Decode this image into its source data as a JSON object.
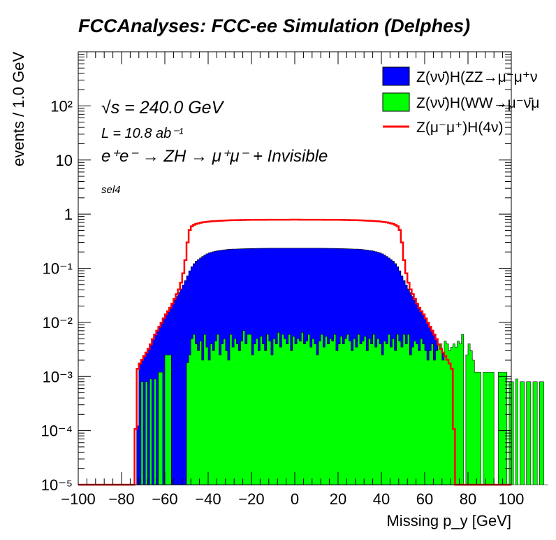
{
  "chart_data": {
    "type": "histogram",
    "title": "FCCAnalyses: FCC-ee Simulation (Delphes)",
    "xlabel": "Missing p_y [GeV]",
    "ylabel": "events / 1.0 GeV",
    "xlim": [
      -100,
      100
    ],
    "ylim": [
      1e-05,
      1000
    ],
    "log_y": true,
    "bin_width": 1.0,
    "x_ticks": [
      "−100",
      "−80",
      "−60",
      "−40",
      "−20",
      "0",
      "20",
      "40",
      "60",
      "80",
      "100"
    ],
    "y_ticks": [
      "10⁻⁵",
      "10⁻⁴",
      "10⁻³",
      "10⁻²",
      "10⁻¹",
      "1",
      "10",
      "10²"
    ],
    "annotations": {
      "sqrt_s": "√s = 240.0 GeV",
      "luminosity": "L = 10.8 ab⁻¹",
      "process": "e⁺e⁻ → ZH → μ⁺μ⁻ + Invisible",
      "selection": "sel4"
    },
    "legend": {
      "placement": "top-right",
      "entries": [
        "Z(νν̄)H(ZZ→μ⁻μ⁺ν",
        "Z(νν̄)H(WW→μ⁻ν̄μ",
        "Z(μ⁻μ⁺)H(4ν)"
      ]
    },
    "series": [
      {
        "name": "Z(νν̄)H(ZZ→μ⁻μ⁺ν",
        "style": "filled",
        "color": "#0000ff",
        "profile": [
          [
            -73,
            1e-05
          ],
          [
            -72,
            0.0015
          ],
          [
            -70,
            0.0022
          ],
          [
            -67,
            0.0035
          ],
          [
            -65,
            0.0055
          ],
          [
            -62,
            0.009
          ],
          [
            -60,
            0.013
          ],
          [
            -57,
            0.02
          ],
          [
            -55,
            0.028
          ],
          [
            -52,
            0.045
          ],
          [
            -50,
            0.065
          ],
          [
            -48,
            0.1
          ],
          [
            -46,
            0.13
          ],
          [
            -44,
            0.15
          ],
          [
            -42,
            0.17
          ],
          [
            -40,
            0.19
          ],
          [
            -36,
            0.21
          ],
          [
            -30,
            0.225
          ],
          [
            -20,
            0.232
          ],
          [
            -10,
            0.235
          ],
          [
            0,
            0.235
          ],
          [
            10,
            0.235
          ],
          [
            20,
            0.232
          ],
          [
            30,
            0.225
          ],
          [
            36,
            0.21
          ],
          [
            40,
            0.19
          ],
          [
            42,
            0.17
          ],
          [
            44,
            0.15
          ],
          [
            46,
            0.13
          ],
          [
            48,
            0.1
          ],
          [
            50,
            0.065
          ],
          [
            52,
            0.045
          ],
          [
            55,
            0.028
          ],
          [
            57,
            0.02
          ],
          [
            60,
            0.013
          ],
          [
            62,
            0.009
          ],
          [
            65,
            0.0055
          ],
          [
            67,
            0.0035
          ],
          [
            70,
            0.0022
          ],
          [
            72,
            0.0015
          ],
          [
            73,
            1e-05
          ]
        ]
      },
      {
        "name": "Z(νν̄)H(WW→μ⁻ν̄μ",
        "style": "filled",
        "color": "#00ff00",
        "x_start": -72,
        "values": [
          1e-05,
          0.0008,
          1e-05,
          0.0008,
          1e-05,
          0.0009,
          1e-05,
          0.0009,
          1e-05,
          0.0012,
          0.0012,
          1e-05,
          0.0025,
          0.0025,
          0.0025,
          1e-05,
          1e-05,
          1e-05,
          1e-05,
          1e-05,
          1e-05,
          1e-05,
          0.0018,
          0.0025,
          0.005,
          0.006,
          0.004,
          0.003,
          0.0045,
          0.002,
          0.006,
          0.0035,
          0.002,
          0.004,
          0.003,
          0.0045,
          0.006,
          0.0025,
          0.004,
          0.005,
          0.003,
          0.002,
          0.006,
          0.0035,
          0.005,
          0.004,
          0.003,
          0.0045,
          0.007,
          0.004,
          0.006,
          0.006,
          0.0025,
          0.004,
          0.005,
          0.003,
          0.0055,
          0.004,
          0.003,
          0.006,
          0.0045,
          0.0025,
          0.005,
          0.004,
          0.0065,
          0.0035,
          0.006,
          0.005,
          0.004,
          0.006,
          0.003,
          0.0055,
          0.004,
          0.005,
          0.0045,
          0.0065,
          0.004,
          0.0045,
          0.006,
          0.0035,
          0.005,
          0.004,
          0.0025,
          0.0045,
          0.006,
          0.0035,
          0.0055,
          0.004,
          0.005,
          0.0045,
          0.006,
          0.003,
          0.004,
          0.0055,
          0.004,
          0.005,
          0.006,
          0.0045,
          0.003,
          0.005,
          0.0035,
          0.006,
          0.004,
          0.0045,
          0.0055,
          0.003,
          0.005,
          0.004,
          0.006,
          0.0035,
          0.005,
          0.004,
          0.0025,
          0.0045,
          0.004,
          0.006,
          0.0035,
          0.005,
          0.003,
          0.006,
          0.0045,
          0.0035,
          0.006,
          0.004,
          0.006,
          0.0025,
          0.0035,
          0.0045,
          0.004,
          0.003,
          0.005,
          0.004,
          0.003,
          0.002,
          0.003,
          0.004,
          0.002,
          0.003,
          0.004,
          0.004,
          0.002,
          0.0045,
          0.004,
          0.003,
          0.0035,
          0.004,
          0.0035,
          0.0045,
          0.004,
          0.006,
          1e-05,
          0.0025,
          0.004,
          0.003,
          0.002,
          0.0012,
          0.0012,
          0.0012,
          1e-05,
          0.0012,
          0.0012,
          0.0012,
          0.0012,
          0.0012,
          1e-05,
          1e-05,
          0.0012,
          0.0012,
          0.0012,
          0.0012,
          1e-05,
          0.0008,
          0.0008,
          1e-05,
          0.0009,
          1e-05,
          0.0008,
          0.0008,
          1e-05,
          0.0008,
          0.0008,
          1e-05,
          0.0008,
          0.0008,
          1e-05,
          0.0008,
          0.0008,
          1e-05,
          1e-05
        ]
      },
      {
        "name": "Z(μ⁻μ⁺)H(4ν)",
        "style": "line",
        "color": "#ff0000",
        "profile": [
          [
            -100,
            9.5e-06
          ],
          [
            -74,
            9.5e-06
          ],
          [
            -73,
            0.0012
          ],
          [
            -72,
            0.0016
          ],
          [
            -70,
            0.0022
          ],
          [
            -67,
            0.0035
          ],
          [
            -65,
            0.0055
          ],
          [
            -62,
            0.009
          ],
          [
            -60,
            0.013
          ],
          [
            -57,
            0.02
          ],
          [
            -55,
            0.03
          ],
          [
            -53,
            0.045
          ],
          [
            -52,
            0.065
          ],
          [
            -51,
            0.1
          ],
          [
            -50,
            0.2
          ],
          [
            -49,
            0.45
          ],
          [
            -48,
            0.58
          ],
          [
            -46,
            0.65
          ],
          [
            -43,
            0.7
          ],
          [
            -38,
            0.74
          ],
          [
            -30,
            0.77
          ],
          [
            -20,
            0.785
          ],
          [
            0,
            0.79
          ],
          [
            20,
            0.785
          ],
          [
            30,
            0.77
          ],
          [
            38,
            0.74
          ],
          [
            43,
            0.7
          ],
          [
            46,
            0.65
          ],
          [
            48,
            0.58
          ],
          [
            49,
            0.45
          ],
          [
            50,
            0.2
          ],
          [
            51,
            0.1
          ],
          [
            52,
            0.065
          ],
          [
            53,
            0.045
          ],
          [
            55,
            0.03
          ],
          [
            57,
            0.02
          ],
          [
            60,
            0.013
          ],
          [
            62,
            0.009
          ],
          [
            65,
            0.0055
          ],
          [
            67,
            0.0035
          ],
          [
            70,
            0.0022
          ],
          [
            72,
            0.0016
          ],
          [
            73,
            0.0012
          ],
          [
            74,
            9.5e-06
          ],
          [
            100,
            9.5e-06
          ]
        ]
      }
    ]
  }
}
